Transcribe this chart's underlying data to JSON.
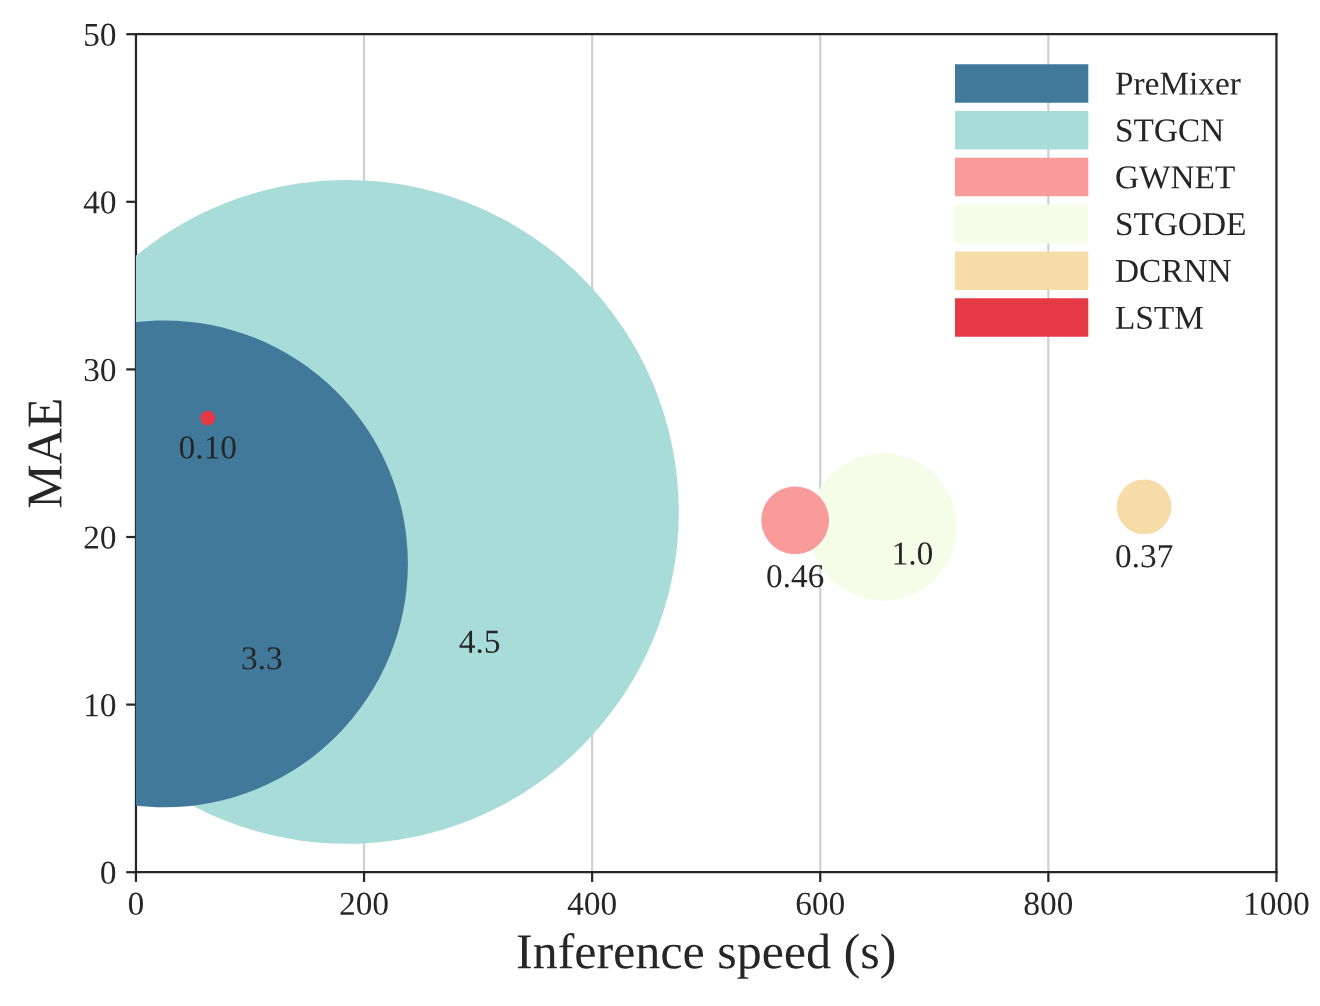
{
  "chart_data": {
    "type": "bubble",
    "xlabel": "Inference speed (s)",
    "ylabel": "MAE",
    "xlim": [
      0,
      1000
    ],
    "ylim": [
      0,
      50
    ],
    "xticks": [
      0,
      200,
      400,
      600,
      800,
      1000
    ],
    "yticks": [
      0,
      10,
      20,
      30,
      40,
      50
    ],
    "grid": "x",
    "legend": "top right",
    "series": [
      {
        "name": "PreMixer",
        "color": "#41799b",
        "x": [
          25
        ],
        "values": [
          18.4
        ],
        "sizes": [
          0.538
        ]
      },
      {
        "name": "STGCN",
        "color": "#a8dcd9",
        "x": [
          185
        ],
        "values": [
          21.5
        ],
        "sizes": [
          1
        ]
      },
      {
        "name": "GWNET",
        "color": "#f99b9b",
        "x": [
          578
        ],
        "values": [
          21
        ],
        "sizes": [
          0.0104
        ]
      },
      {
        "name": "STGODE",
        "color": "#f5fde9",
        "x": [
          655
        ],
        "values": [
          20.6
        ],
        "sizes": [
          0.0494
        ]
      },
      {
        "name": "DCRNN",
        "color": "#f6dca8",
        "x": [
          884
        ],
        "values": [
          21.8
        ],
        "sizes": [
          0.00676
        ]
      },
      {
        "name": "LSTM",
        "color": "#e63946",
        "x": [
          63
        ],
        "values": [
          27.1
        ],
        "sizes": [
          0.000494
        ]
      }
    ],
    "annotations": [
      "3.3",
      "4.5",
      "0.46",
      "1.0",
      "0.37",
      "0.10"
    ]
  }
}
